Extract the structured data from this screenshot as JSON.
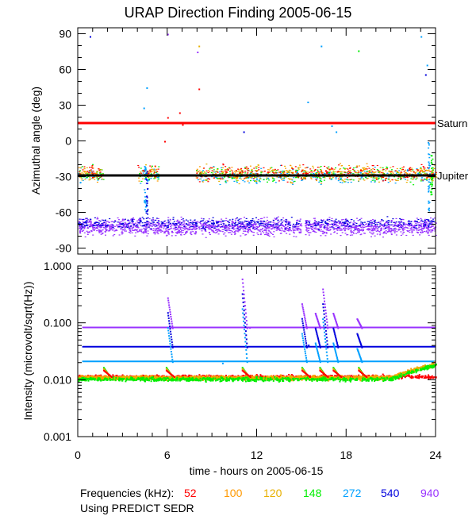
{
  "chart_data": [
    {
      "type": "scatter",
      "title": "URAP Direction Finding  2005-06-15",
      "ylabel": "Azimuthal angle (deg)",
      "ylim": [
        -95,
        95
      ],
      "yticks": [
        90,
        60,
        30,
        0,
        -30,
        -60,
        -90
      ],
      "xlim": [
        0,
        24
      ],
      "reference_lines": [
        {
          "name": "Saturn",
          "value": 15,
          "color": "#ff0000"
        },
        {
          "name": "Jupiter",
          "value": -29,
          "color": "#000000"
        }
      ],
      "series": [
        {
          "name": "940",
          "color": "#9933ff",
          "band_center": -72,
          "band_halfwidth": 6
        },
        {
          "name": "540",
          "color": "#0000dd",
          "band_center": -69,
          "band_halfwidth": 4
        },
        {
          "name": "272",
          "color": "#00a0ff",
          "band_center": -29,
          "band_halfwidth": 6
        },
        {
          "name": "148",
          "color": "#00ee00",
          "band_center": -28,
          "band_halfwidth": 6
        },
        {
          "name": "120",
          "color": "#e8b000",
          "band_center": -27,
          "band_halfwidth": 6
        },
        {
          "name": "100",
          "color": "#ff9900",
          "band_center": -27,
          "band_halfwidth": 6
        },
        {
          "name": "52",
          "color": "#ff0000",
          "band_center": -26,
          "band_halfwidth": 6
        }
      ],
      "outliers": [
        {
          "x": 6.0,
          "y": 20,
          "series": "52"
        },
        {
          "x": 6.4,
          "y": 16,
          "series": "52"
        },
        {
          "x": 6.8,
          "y": 24,
          "series": "52"
        },
        {
          "x": 7.0,
          "y": 14,
          "series": "52"
        },
        {
          "x": 5.8,
          "y": 0,
          "series": "52"
        },
        {
          "x": 8.1,
          "y": 44,
          "series": "52"
        },
        {
          "x": 8.1,
          "y": 80,
          "series": "120"
        },
        {
          "x": 6.0,
          "y": 90,
          "series": "940"
        },
        {
          "x": 4.6,
          "y": 45,
          "series": "272"
        },
        {
          "x": 4.4,
          "y": 28,
          "series": "272"
        },
        {
          "x": 0.8,
          "y": 88,
          "series": "540"
        },
        {
          "x": 16.3,
          "y": 80,
          "series": "272"
        },
        {
          "x": 23.0,
          "y": 88,
          "series": "272"
        },
        {
          "x": 23.4,
          "y": 64,
          "series": "272"
        },
        {
          "x": 23.3,
          "y": 56,
          "series": "540"
        },
        {
          "x": 15.4,
          "y": 33,
          "series": "272"
        },
        {
          "x": 18.8,
          "y": 76,
          "series": "148"
        },
        {
          "x": 17.3,
          "y": 8,
          "series": "272"
        },
        {
          "x": 17.0,
          "y": 13,
          "series": "272"
        },
        {
          "x": 11.1,
          "y": 8,
          "series": "540"
        },
        {
          "x": 8.0,
          "y": 75,
          "series": "940"
        }
      ]
    },
    {
      "type": "line",
      "ylabel": "Intensity (microvolt/sqrt(Hz))",
      "yscale": "log",
      "ylim": [
        0.001,
        1.0
      ],
      "yticks": [
        1.0,
        0.1,
        0.01,
        0.001
      ],
      "ytick_labels": [
        "1.000",
        "0.100",
        "0.010",
        "0.001"
      ],
      "xlim": [
        0,
        24
      ],
      "xticks": [
        0,
        6,
        12,
        18,
        24
      ],
      "xlabel": "time - hours on 2005-06-15",
      "x": [
        0,
        24
      ],
      "series": [
        {
          "name": "940",
          "color": "#9933ff",
          "baseline": 0.083
        },
        {
          "name": "540",
          "color": "#0000dd",
          "baseline": 0.038
        },
        {
          "name": "272",
          "color": "#00a0ff",
          "baseline": 0.021
        },
        {
          "name": "52",
          "color": "#ff0000",
          "baseline": 0.0115
        },
        {
          "name": "100",
          "color": "#ff9900",
          "baseline": 0.0112
        },
        {
          "name": "120",
          "color": "#e8b000",
          "baseline": 0.011
        },
        {
          "name": "148",
          "color": "#00ee00",
          "baseline": 0.0105
        }
      ],
      "bursts": [
        {
          "x": 1.7,
          "peak": 0.016,
          "series": "148"
        },
        {
          "x": 6.0,
          "peak": 0.28,
          "series": "940"
        },
        {
          "x": 11.0,
          "peak": 0.6,
          "series": "940"
        },
        {
          "x": 15.0,
          "peak": 0.22,
          "series": "940"
        },
        {
          "x": 15.9,
          "peak": 0.15,
          "series": "940"
        },
        {
          "x": 16.4,
          "peak": 0.4,
          "series": "940"
        },
        {
          "x": 17.1,
          "peak": 0.15,
          "series": "940"
        },
        {
          "x": 18.7,
          "peak": 0.12,
          "series": "940"
        }
      ]
    }
  ],
  "legend": {
    "label": "Frequencies (kHz):",
    "items": [
      {
        "text": "52",
        "color": "#ff0000"
      },
      {
        "text": "100",
        "color": "#ff9900"
      },
      {
        "text": "120",
        "color": "#e8b000"
      },
      {
        "text": "148",
        "color": "#00ee00"
      },
      {
        "text": "272",
        "color": "#00a0ff"
      },
      {
        "text": "540",
        "color": "#0000dd"
      },
      {
        "text": "940",
        "color": "#9933ff"
      }
    ]
  },
  "footer": "Using PREDICT SEDR"
}
